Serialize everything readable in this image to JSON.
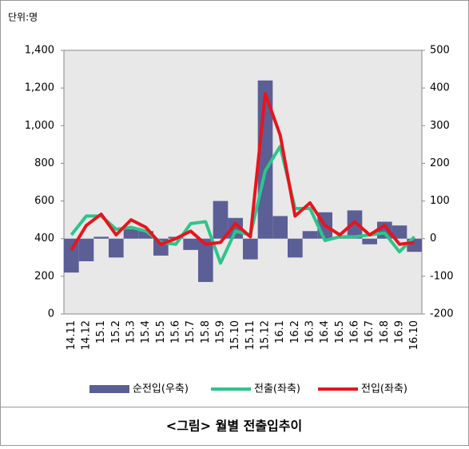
{
  "chart_data": {
    "type": "combo",
    "unit_label": "단위:명",
    "categories": [
      "14.11",
      "14.12",
      "15.1",
      "15.2",
      "15.3",
      "15.4",
      "15.5",
      "15.6",
      "15.7",
      "15.8",
      "15.9",
      "15.10",
      "15.11",
      "15.12",
      "16.1",
      "16.2",
      "16.3",
      "16.4",
      "16.5",
      "16.6",
      "16.7",
      "16.8",
      "16.9",
      "16.10"
    ],
    "series": [
      {
        "name": "순전입(우축)",
        "type": "bar",
        "axis": "y2",
        "color": "#5b5f96",
        "values": [
          -90,
          -60,
          5,
          -50,
          25,
          20,
          -45,
          5,
          -30,
          -115,
          100,
          55,
          -55,
          420,
          60,
          -50,
          20,
          70,
          5,
          75,
          -15,
          45,
          35,
          -35
        ]
      },
      {
        "name": "전출(좌축)",
        "type": "line",
        "color": "#2ec48c",
        "values": [
          420,
          520,
          520,
          450,
          460,
          440,
          380,
          370,
          480,
          490,
          270,
          440,
          420,
          760,
          890,
          560,
          560,
          390,
          410,
          410,
          420,
          430,
          330,
          410
        ]
      },
      {
        "name": "전입(좌축)",
        "type": "line",
        "color": "#e8141c",
        "values": [
          340,
          470,
          530,
          420,
          500,
          460,
          370,
          400,
          440,
          370,
          380,
          480,
          410,
          1170,
          950,
          520,
          590,
          470,
          420,
          490,
          420,
          470,
          370,
          380
        ]
      }
    ],
    "ylim": [
      0,
      1400
    ],
    "yticks": [
      0,
      200,
      400,
      600,
      800,
      {
        "value": 1000,
        "label": "1,000"
      },
      {
        "value": 1200,
        "label": "1,200"
      },
      {
        "value": 1400,
        "label": "1,400"
      }
    ],
    "y2lim": [
      -200,
      500
    ],
    "y2ticks": [
      -200,
      -100,
      0,
      100,
      200,
      300,
      400,
      500
    ],
    "grid": false,
    "legend": "bottom"
  },
  "caption": "<그림> 월별 전출입추이"
}
